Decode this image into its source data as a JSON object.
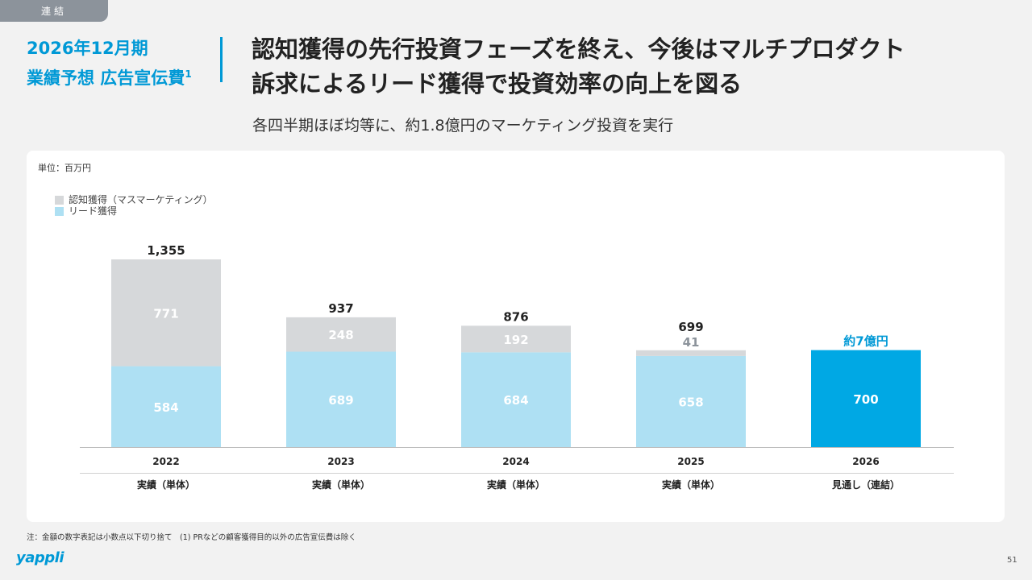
{
  "tag": "連結",
  "left_title": {
    "line1": "2026年12月期",
    "line2": "業績予想 広告宣伝費",
    "sup": "1"
  },
  "headline": {
    "line1": "認知獲得の先行投資フェーズを終え、今後はマルチプロダクト",
    "line2": "訴求によるリード獲得で投資効率の向上を図る"
  },
  "subline": "各四半期ほぼ均等に、約1.8億円のマーケティング投資を実行",
  "unit": "単位：百万円",
  "legend": [
    {
      "label": "認知獲得（マスマーケティング）",
      "color": "#d6d8da"
    },
    {
      "label": "リード獲得",
      "color": "#aee0f3"
    }
  ],
  "chart_data": {
    "type": "bar",
    "stacked": true,
    "categories": [
      "2022",
      "2023",
      "2024",
      "2025",
      "2026"
    ],
    "sublabels": [
      "実績（単体）",
      "実績（単体）",
      "実績（単体）",
      "実績（単体）",
      "見通し（連結）"
    ],
    "series": [
      {
        "name": "リード獲得",
        "values": [
          584,
          689,
          684,
          658,
          700
        ],
        "labels": [
          "584",
          "689",
          "684",
          "658",
          "700"
        ],
        "color": "#aee0f3",
        "highlight_color": "#00a8e4"
      },
      {
        "name": "認知獲得（マスマーケティング）",
        "values": [
          771,
          248,
          192,
          41,
          0
        ],
        "labels": [
          "771",
          "248",
          "192",
          "41",
          ""
        ],
        "color": "#d6d8da"
      }
    ],
    "totals": [
      "1,355",
      "937",
      "876",
      "699",
      "約7億円"
    ],
    "total_colors": [
      "#222222",
      "#222222",
      "#222222",
      "#222222",
      "#0099d6"
    ],
    "highlight_index": 4,
    "ylim": [
      0,
      1355
    ]
  },
  "footnote": "注：金額の数字表記は小数点以下切り捨て　(1) PRなどの顧客獲得目的以外の広告宣伝費は除く",
  "logo": "yappli",
  "page_number": "51"
}
